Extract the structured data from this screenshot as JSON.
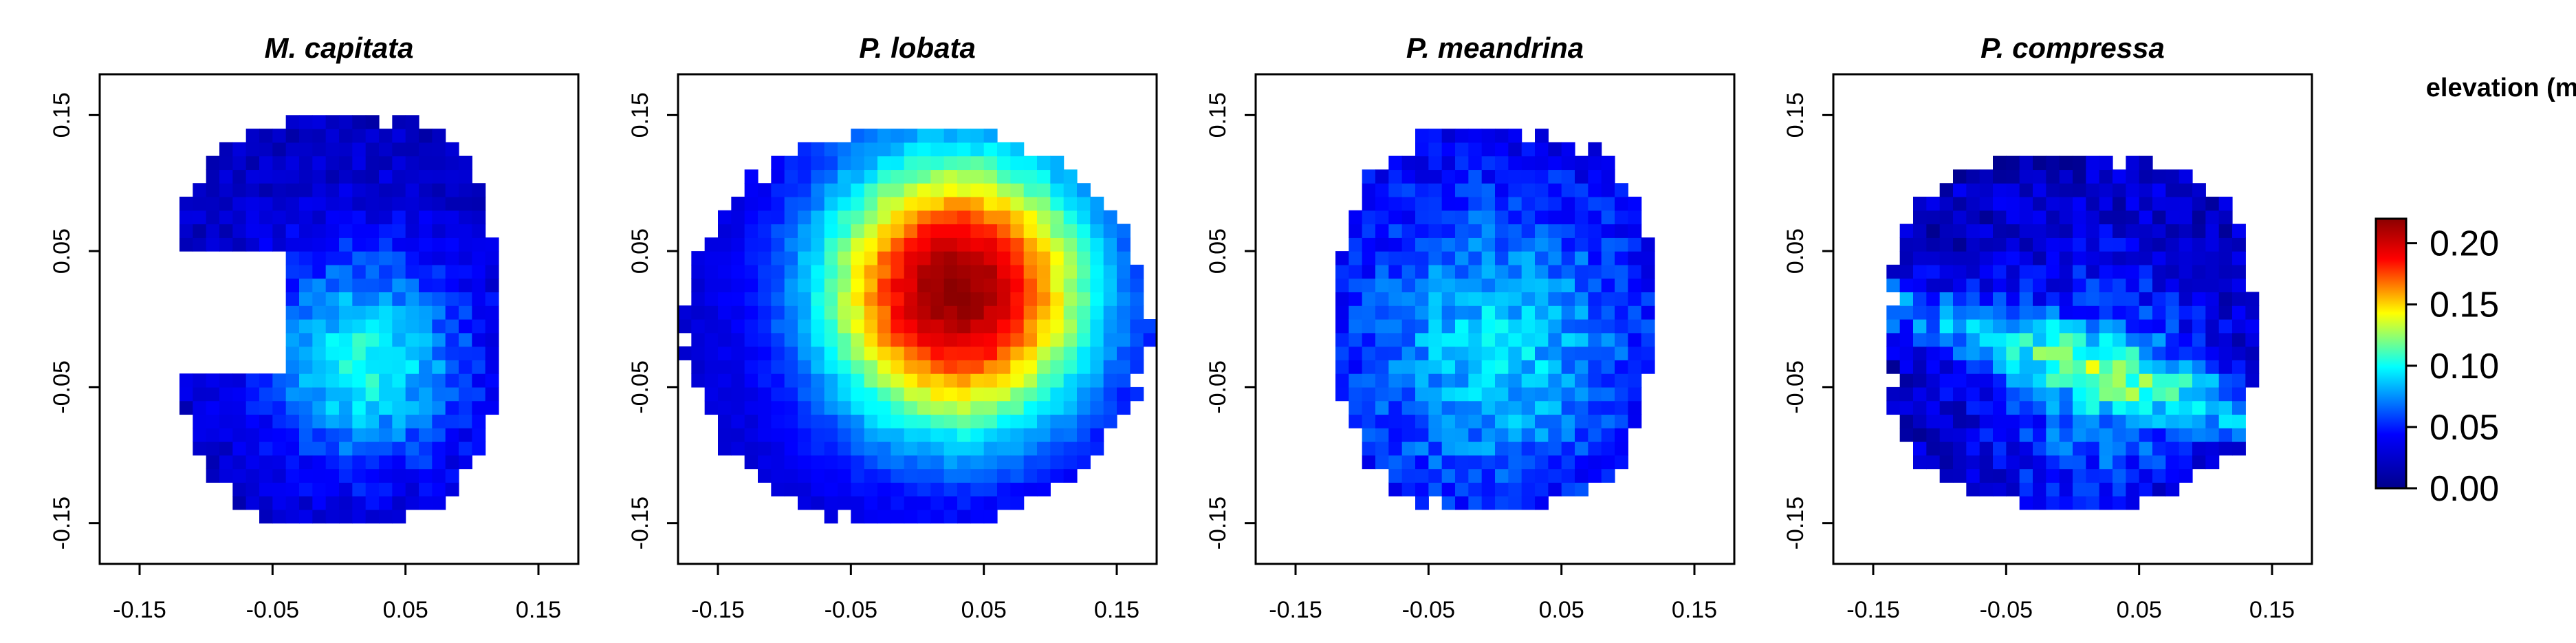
{
  "chart_data": {
    "type": "heatmap",
    "colorbar": {
      "title": "elevation (m)",
      "range": [
        0.0,
        0.22
      ],
      "ticks": [
        0.0,
        0.05,
        0.1,
        0.15,
        0.2
      ],
      "tick_labels": [
        "0.00",
        "0.05",
        "0.10",
        "0.15",
        "0.20"
      ],
      "colormap": [
        "#00008B",
        "#0000FF",
        "#00FFFF",
        "#FFFF00",
        "#FF0000",
        "#8B0000"
      ]
    },
    "panels": [
      {
        "title": "M. capitata",
        "xlim": [
          -0.18,
          0.18
        ],
        "ylim": [
          -0.18,
          0.18
        ],
        "x_ticks": [
          -0.15,
          -0.05,
          0.05,
          0.15
        ],
        "x_tick_labels": [
          "-0.15",
          "-0.05",
          "0.05",
          "0.15"
        ],
        "y_ticks": [
          -0.15,
          -0.05,
          0.05,
          0.15
        ],
        "y_tick_labels": [
          "-0.15",
          "-0.05",
          "0.05",
          "0.15"
        ],
        "cell_size": 0.01,
        "shape": "kidney",
        "footprint": {
          "x_range": [
            -0.12,
            0.12
          ],
          "y_range": [
            -0.15,
            0.15
          ]
        },
        "peak_elevation": 0.1,
        "peak_location": [
          0.02,
          -0.03
        ],
        "base_elevation": 0.02,
        "noise": 0.012,
        "seed": 11
      },
      {
        "title": "P. lobata",
        "xlim": [
          -0.18,
          0.18
        ],
        "ylim": [
          -0.18,
          0.18
        ],
        "x_ticks": [
          -0.15,
          -0.05,
          0.05,
          0.15
        ],
        "x_tick_labels": [
          "-0.15",
          "-0.05",
          "0.05",
          "0.15"
        ],
        "y_ticks": [
          -0.15,
          -0.05,
          0.05,
          0.15
        ],
        "y_tick_labels": [
          "-0.15",
          "-0.05",
          "0.05",
          "0.15"
        ],
        "cell_size": 0.01,
        "shape": "ellipse",
        "footprint": {
          "x_range": [
            -0.175,
            0.175
          ],
          "y_range": [
            -0.155,
            0.145
          ]
        },
        "peak_elevation": 0.22,
        "peak_location": [
          0.03,
          0.02
        ],
        "base_elevation": 0.025,
        "noise": 0.006,
        "seed": 23
      },
      {
        "title": "P. meandrina",
        "xlim": [
          -0.18,
          0.18
        ],
        "ylim": [
          -0.18,
          0.18
        ],
        "x_ticks": [
          -0.15,
          -0.05,
          0.05,
          0.15
        ],
        "x_tick_labels": [
          "-0.15",
          "-0.05",
          "0.05",
          "0.15"
        ],
        "y_ticks": [
          -0.15,
          -0.05,
          0.05,
          0.15
        ],
        "y_tick_labels": [
          "-0.15",
          "-0.05",
          "0.05",
          "0.15"
        ],
        "cell_size": 0.01,
        "shape": "blob",
        "footprint": {
          "x_range": [
            -0.12,
            0.12
          ],
          "y_range": [
            -0.14,
            0.14
          ]
        },
        "peak_elevation": 0.09,
        "peak_location": [
          0.0,
          -0.02
        ],
        "base_elevation": 0.03,
        "noise": 0.015,
        "seed": 37
      },
      {
        "title": "P. compressa",
        "xlim": [
          -0.18,
          0.18
        ],
        "ylim": [
          -0.18,
          0.18
        ],
        "x_ticks": [
          -0.15,
          -0.05,
          0.05,
          0.15
        ],
        "x_tick_labels": [
          "-0.15",
          "-0.05",
          "0.05",
          "0.15"
        ],
        "y_ticks": [
          -0.15,
          -0.05,
          0.05,
          0.15
        ],
        "y_tick_labels": [
          "-0.15",
          "-0.05",
          "0.05",
          "0.15"
        ],
        "cell_size": 0.01,
        "shape": "branching",
        "footprint": {
          "x_range": [
            -0.14,
            0.14
          ],
          "y_range": [
            -0.14,
            0.12
          ]
        },
        "peak_elevation": 0.12,
        "peak_location": [
          0.02,
          -0.05
        ],
        "base_elevation": 0.02,
        "noise": 0.02,
        "seed": 51
      }
    ]
  }
}
